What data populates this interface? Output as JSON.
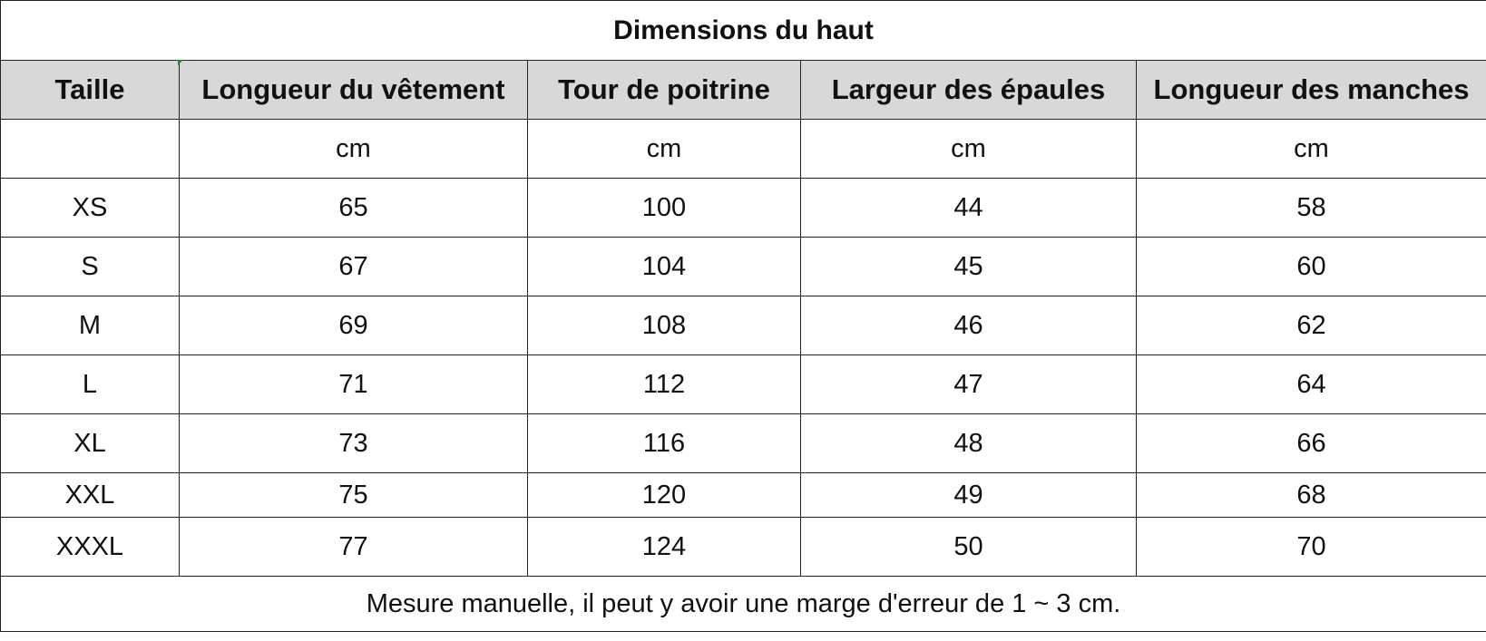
{
  "title": "Dimensions du haut",
  "columns": [
    "Taille",
    "Longueur du vêtement",
    "Tour de poitrine",
    "Largeur des épaules",
    "Longueur des manches"
  ],
  "units": [
    "",
    "cm",
    "cm",
    "cm",
    "cm"
  ],
  "rows": [
    [
      "XS",
      "65",
      "100",
      "44",
      "58"
    ],
    [
      "S",
      "67",
      "104",
      "45",
      "60"
    ],
    [
      "M",
      "69",
      "108",
      "46",
      "62"
    ],
    [
      "L",
      "71",
      "112",
      "47",
      "64"
    ],
    [
      "XL",
      "73",
      "116",
      "48",
      "66"
    ],
    [
      "XXL",
      "75",
      "120",
      "49",
      "68"
    ],
    [
      "XXXL",
      "77",
      "124",
      "50",
      "70"
    ]
  ],
  "note": "Mesure manuelle, il peut y avoir une marge d'erreur de 1 ~ 3 cm.",
  "colors": {
    "header_bg": "#d8d8d8",
    "border": "#222222",
    "corner_mark": "#1a8a2a"
  }
}
